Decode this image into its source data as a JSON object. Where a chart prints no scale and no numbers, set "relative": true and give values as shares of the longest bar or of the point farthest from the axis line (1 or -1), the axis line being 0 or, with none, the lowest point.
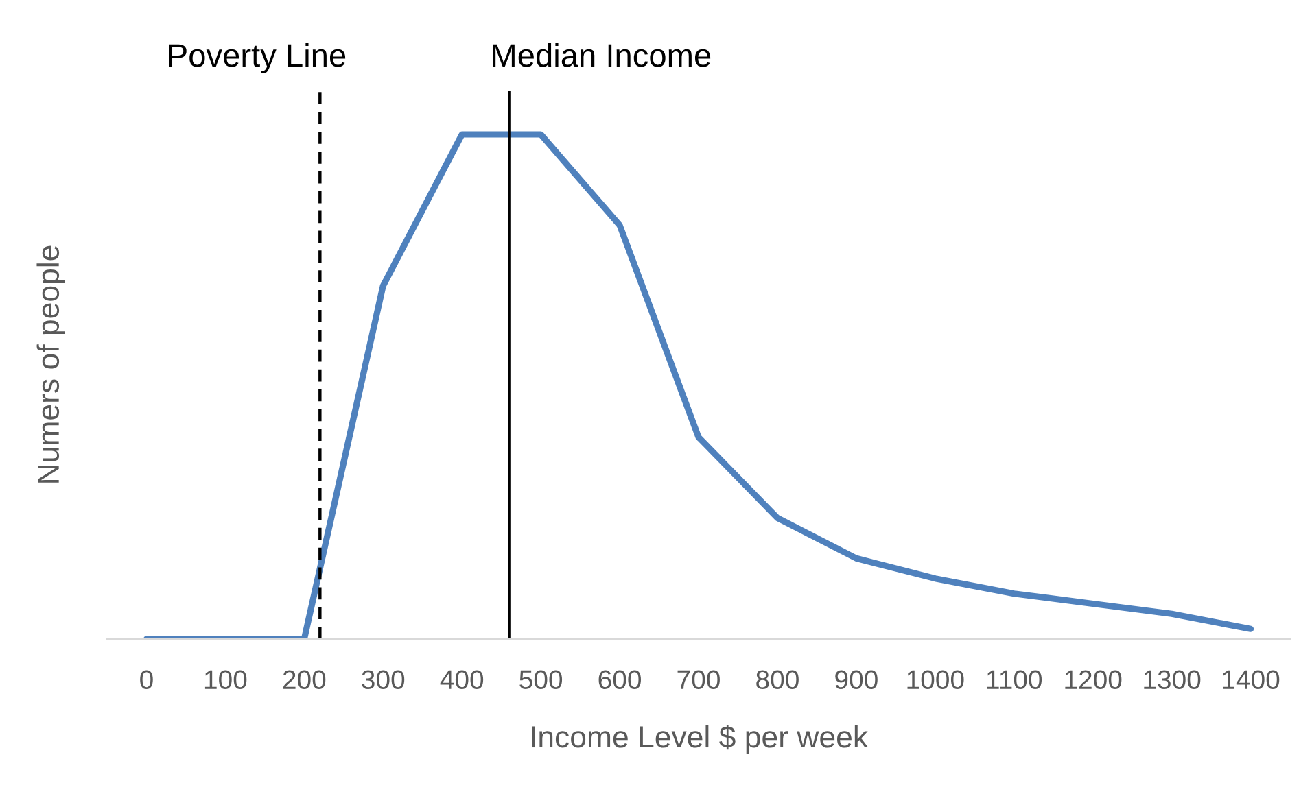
{
  "chart_data": {
    "type": "line",
    "xlabel": "Income Level $ per week",
    "ylabel": "Numers of people",
    "relative": true,
    "tick_labels": "x",
    "grid": false,
    "x": [
      0,
      100,
      200,
      300,
      400,
      500,
      600,
      700,
      800,
      900,
      1000,
      1100,
      1200,
      1300,
      1400
    ],
    "xlim": [
      -50,
      1450
    ],
    "xticks": [
      0,
      100,
      200,
      300,
      400,
      500,
      600,
      700,
      800,
      900,
      1000,
      1100,
      1200,
      1300,
      1400
    ],
    "series": [
      {
        "color": "#4f81bd",
        "line_style": "solid",
        "values": [
          0,
          0,
          0,
          0.7,
          1,
          1,
          0.82,
          0.4,
          0.24,
          0.16,
          0.12,
          0.09,
          0.07,
          0.05,
          0.02
        ]
      }
    ],
    "ref_lines": [
      {
        "axis": "x",
        "value": 220,
        "label": "Poverty Line",
        "color": "#000000",
        "line_style": "dashed"
      },
      {
        "axis": "x",
        "value": 460,
        "label": "Median Income",
        "color": "#000000",
        "line_style": "solid"
      }
    ]
  }
}
